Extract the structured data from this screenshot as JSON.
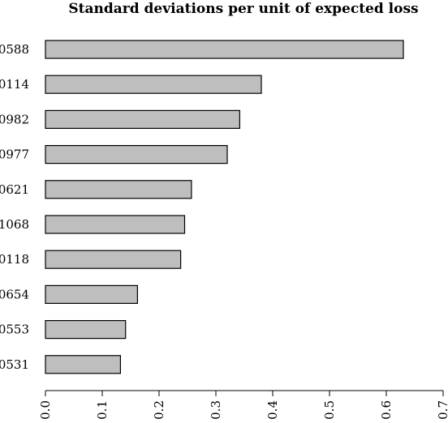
{
  "chart_data": {
    "type": "bar",
    "orientation": "horizontal",
    "title": "Standard deviations per unit of expected loss",
    "xlabel": "",
    "ylabel": "",
    "categories": [
      "0588",
      "0114",
      "0982",
      "0977",
      "0621",
      "1068",
      "0118",
      "0654",
      "0553",
      "0531"
    ],
    "values": [
      0.63,
      0.38,
      0.342,
      0.32,
      0.257,
      0.245,
      0.238,
      0.162,
      0.141,
      0.132
    ],
    "xlim": [
      0,
      0.7
    ],
    "xticks": [
      0.0,
      0.1,
      0.2,
      0.3,
      0.4,
      0.5,
      0.6,
      0.7
    ],
    "xtick_labels": [
      "0.0",
      "0.1",
      "0.2",
      "0.3",
      "0.4",
      "0.5",
      "0.6",
      "0.7"
    ],
    "bar_color": "#bebebe",
    "edge_color": "#000000",
    "grid": false,
    "legend": "none"
  }
}
